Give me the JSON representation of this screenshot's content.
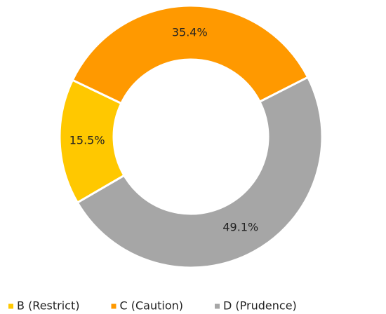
{
  "chart_data": {
    "type": "donut",
    "categories": [
      "B (Restrict)",
      "C (Caution)",
      "D (Prudence)"
    ],
    "values": [
      15.5,
      35.4,
      49.1
    ],
    "value_labels": [
      "15.5%",
      "35.4%",
      "49.1%"
    ],
    "colors": [
      "#ffc800",
      "#ff9900",
      "#a6a6a6"
    ],
    "legend": "bottom"
  }
}
